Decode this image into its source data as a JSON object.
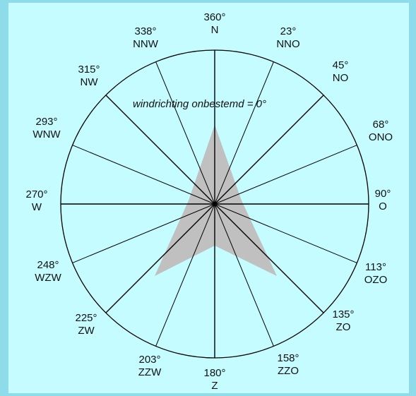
{
  "note": "windrichting onbestemd = 0°",
  "directions": [
    {
      "deg": "360°",
      "name": "N"
    },
    {
      "deg": "23°",
      "name": "NNO"
    },
    {
      "deg": "45°",
      "name": "NO"
    },
    {
      "deg": "68°",
      "name": "ONO"
    },
    {
      "deg": "90°",
      "name": "O"
    },
    {
      "deg": "113°",
      "name": "OZO"
    },
    {
      "deg": "135°",
      "name": "ZO"
    },
    {
      "deg": "158°",
      "name": "ZZO"
    },
    {
      "deg": "180°",
      "name": "Z"
    },
    {
      "deg": "203°",
      "name": "ZZW"
    },
    {
      "deg": "225°",
      "name": "ZW"
    },
    {
      "deg": "248°",
      "name": "WZW"
    },
    {
      "deg": "270°",
      "name": "W"
    },
    {
      "deg": "293°",
      "name": "WNW"
    },
    {
      "deg": "315°",
      "name": "NW"
    },
    {
      "deg": "338°",
      "name": "NNW"
    }
  ],
  "colors": {
    "background": "#c4fcff",
    "border": "#8edcea",
    "arrow": "#c0c0c0",
    "line": "#000000"
  }
}
